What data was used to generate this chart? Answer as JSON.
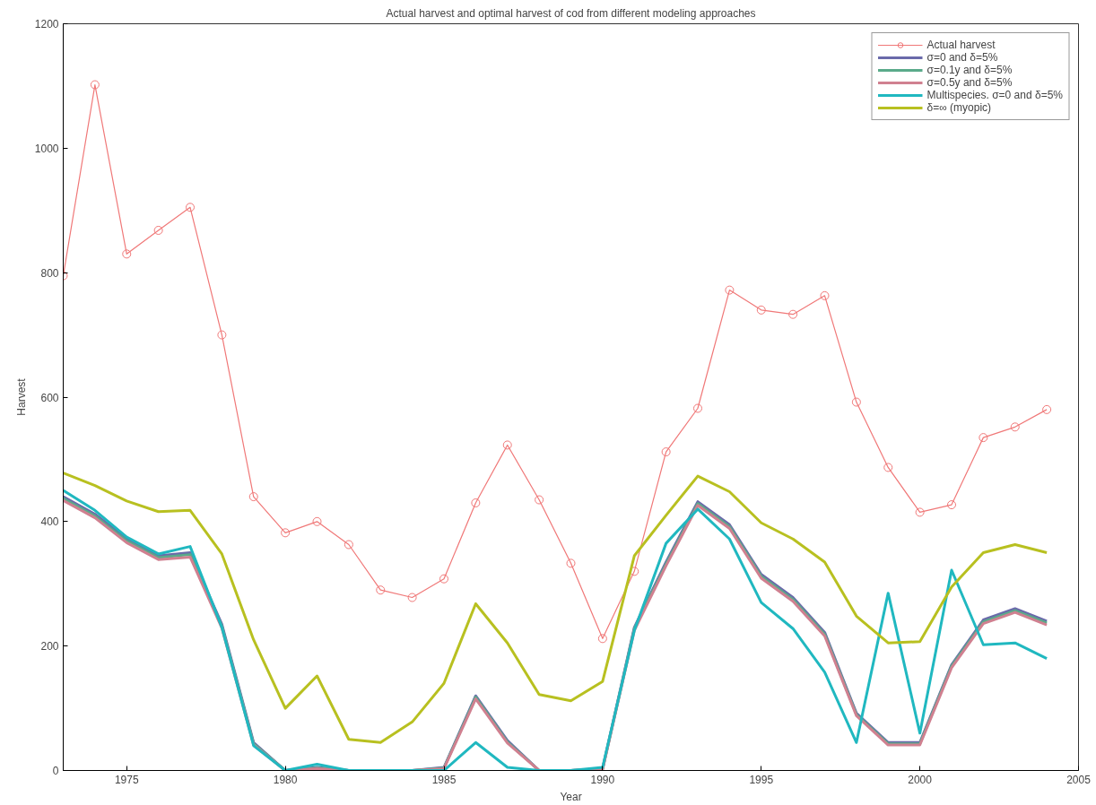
{
  "chart_data": {
    "type": "line",
    "title": "Actual harvest and optimal harvest of cod from different modeling approaches",
    "xlabel": "Year",
    "ylabel": "Harvest",
    "x": [
      1973,
      1974,
      1975,
      1976,
      1977,
      1978,
      1979,
      1980,
      1981,
      1982,
      1983,
      1984,
      1985,
      1986,
      1987,
      1988,
      1989,
      1990,
      1991,
      1992,
      1993,
      1994,
      1995,
      1996,
      1997,
      1998,
      1999,
      2000,
      2001,
      2002,
      2003,
      2004
    ],
    "series": [
      {
        "name": "Actual harvest",
        "color": "#f07878",
        "marker": "circle",
        "values": [
          795,
          1102,
          830,
          868,
          905,
          700,
          440,
          382,
          400,
          363,
          290,
          278,
          308,
          430,
          523,
          435,
          333,
          212,
          320,
          512,
          582,
          772,
          740,
          733,
          763,
          592,
          487,
          415,
          427,
          535,
          552,
          580
        ]
      },
      {
        "name": "σ=0 and δ=5%",
        "color": "#6a6aaa",
        "marker": "none",
        "values": [
          440,
          412,
          372,
          345,
          350,
          235,
          45,
          0,
          5,
          0,
          0,
          0,
          5,
          120,
          48,
          0,
          0,
          3,
          230,
          335,
          432,
          395,
          315,
          278,
          222,
          92,
          45,
          45,
          170,
          242,
          260,
          240
        ]
      },
      {
        "name": "σ=0.1y and δ=5%",
        "color": "#5aaa8a",
        "marker": "none",
        "values": [
          437,
          409,
          369,
          342,
          347,
          232,
          43,
          0,
          4,
          0,
          0,
          0,
          4,
          118,
          46,
          0,
          0,
          2,
          228,
          332,
          429,
          392,
          312,
          275,
          219,
          90,
          43,
          43,
          168,
          239,
          257,
          237
        ]
      },
      {
        "name": "σ=0.5y and δ=5%",
        "color": "#d08090",
        "marker": "none",
        "values": [
          434,
          406,
          366,
          339,
          343,
          229,
          41,
          0,
          3,
          0,
          0,
          0,
          3,
          115,
          44,
          0,
          0,
          2,
          225,
          329,
          426,
          389,
          309,
          272,
          216,
          88,
          41,
          41,
          165,
          236,
          254,
          234
        ]
      },
      {
        "name": "Multispecies. σ=0 and δ=5%",
        "color": "#20b8c0",
        "marker": "none",
        "values": [
          450,
          418,
          375,
          348,
          360,
          230,
          40,
          0,
          10,
          0,
          0,
          0,
          0,
          45,
          5,
          0,
          0,
          5,
          225,
          365,
          420,
          372,
          270,
          228,
          158,
          45,
          285,
          60,
          322,
          202,
          205,
          180
        ]
      },
      {
        "name": "δ=∞ (myopic)",
        "color": "#b8c020",
        "marker": "none",
        "values": [
          478,
          458,
          433,
          416,
          418,
          348,
          210,
          100,
          152,
          50,
          45,
          78,
          140,
          268,
          205,
          122,
          112,
          143,
          345,
          410,
          473,
          448,
          398,
          372,
          335,
          248,
          205,
          207,
          295,
          350,
          363,
          350
        ]
      }
    ],
    "xlim": [
      1973,
      2005
    ],
    "xticks": [
      1975,
      1980,
      1985,
      1990,
      1995,
      2000,
      2005
    ],
    "ylim": [
      0,
      1200
    ],
    "yticks": [
      0,
      200,
      400,
      600,
      800,
      1000,
      1200
    ],
    "grid": false,
    "legend": "top right"
  }
}
